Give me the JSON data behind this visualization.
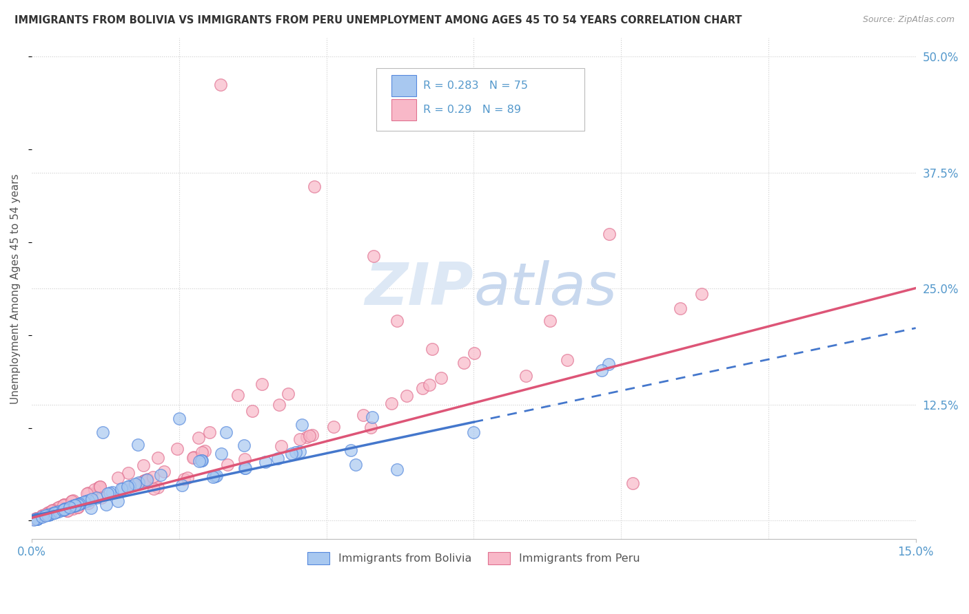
{
  "title": "IMMIGRANTS FROM BOLIVIA VS IMMIGRANTS FROM PERU UNEMPLOYMENT AMONG AGES 45 TO 54 YEARS CORRELATION CHART",
  "source": "Source: ZipAtlas.com",
  "ylabel": "Unemployment Among Ages 45 to 54 years",
  "xlim": [
    0.0,
    0.15
  ],
  "ylim": [
    -0.02,
    0.52
  ],
  "ytick_positions": [
    0.0,
    0.125,
    0.25,
    0.375,
    0.5
  ],
  "yticklabels": [
    "",
    "12.5%",
    "25.0%",
    "37.5%",
    "50.0%"
  ],
  "bolivia_R": 0.283,
  "bolivia_N": 75,
  "peru_R": 0.29,
  "peru_N": 89,
  "bolivia_color": "#A8C8F0",
  "peru_color": "#F8B8C8",
  "bolivia_edge_color": "#5588DD",
  "peru_edge_color": "#E07090",
  "bolivia_line_color": "#4477CC",
  "peru_line_color": "#DD5577",
  "grid_color": "#CCCCCC",
  "background_color": "#FFFFFF",
  "label_color": "#5599CC",
  "title_color": "#333333",
  "source_color": "#999999",
  "watermark_color": "#DDE8F5",
  "bolivia_line_solid_end": 0.075,
  "peru_line_solid_end": 0.15,
  "bolivia_slope": 1.35,
  "bolivia_intercept": 0.005,
  "peru_slope": 1.65,
  "peru_intercept": 0.003
}
